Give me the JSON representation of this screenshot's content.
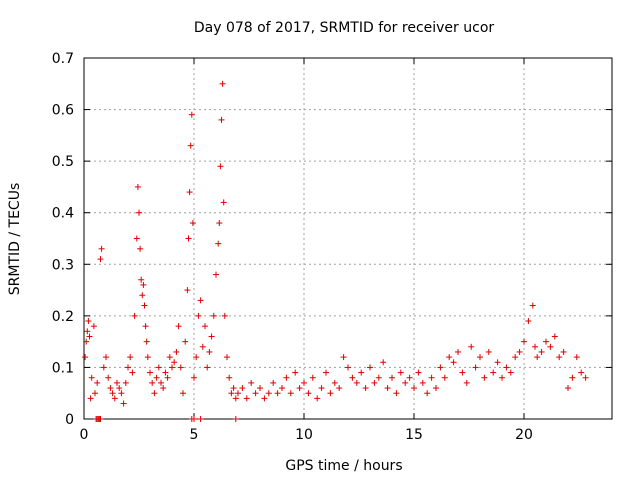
{
  "chart_data": {
    "type": "scatter",
    "title": "Day 078 of 2017, SRMTID for receiver ucor",
    "xlabel": "GPS time / hours",
    "ylabel": "SRMTID / TECUs",
    "xlim": [
      0,
      24
    ],
    "ylim": [
      0,
      0.7
    ],
    "xticks": [
      0,
      5,
      10,
      15,
      20
    ],
    "xtick_labels": [
      "0",
      "5",
      "10",
      "15",
      "20"
    ],
    "yticks": [
      0,
      0.1,
      0.2,
      0.3,
      0.4,
      0.5,
      0.6,
      0.7
    ],
    "ytick_labels": [
      "0",
      "0.1",
      "0.2",
      "0.3",
      "0.4",
      "0.5",
      "0.6",
      "0.7"
    ],
    "grid": true,
    "marker": "+",
    "color": "#e00000",
    "series": [
      {
        "name": "SRMTID",
        "x": [
          0.05,
          0.1,
          0.15,
          0.2,
          0.25,
          0.3,
          0.35,
          0.45,
          0.5,
          0.6,
          0.75,
          0.8,
          0.9,
          1.0,
          1.1,
          1.2,
          1.3,
          1.4,
          1.5,
          1.6,
          1.7,
          1.8,
          1.9,
          2.0,
          2.1,
          2.2,
          2.3,
          2.4,
          2.45,
          2.5,
          2.55,
          2.6,
          2.65,
          2.7,
          2.75,
          2.8,
          2.85,
          2.9,
          3.0,
          3.1,
          3.2,
          3.3,
          3.4,
          3.5,
          3.6,
          3.7,
          3.8,
          3.9,
          4.0,
          4.1,
          4.2,
          4.3,
          4.4,
          4.5,
          4.6,
          4.7,
          4.75,
          4.8,
          4.85,
          4.9,
          4.95,
          5.0,
          5.1,
          5.2,
          5.3,
          5.4,
          5.5,
          5.6,
          5.7,
          5.8,
          5.9,
          6.0,
          6.1,
          6.15,
          6.2,
          6.25,
          6.3,
          6.35,
          6.4,
          6.5,
          6.6,
          6.7,
          6.8,
          6.9,
          7.0,
          7.2,
          7.4,
          7.6,
          7.8,
          8.0,
          8.2,
          8.4,
          8.6,
          8.8,
          9.0,
          9.2,
          9.4,
          9.6,
          9.8,
          10.0,
          10.2,
          10.4,
          10.6,
          10.8,
          11.0,
          11.2,
          11.4,
          11.6,
          11.8,
          12.0,
          12.2,
          12.4,
          12.6,
          12.8,
          13.0,
          13.2,
          13.4,
          13.6,
          13.8,
          14.0,
          14.2,
          14.4,
          14.6,
          14.8,
          15.0,
          15.2,
          15.4,
          15.6,
          15.8,
          16.0,
          16.2,
          16.4,
          16.6,
          16.8,
          17.0,
          17.2,
          17.4,
          17.6,
          17.8,
          18.0,
          18.2,
          18.4,
          18.6,
          18.8,
          19.0,
          19.2,
          19.4,
          19.6,
          19.8,
          20.0,
          20.2,
          20.4,
          20.5,
          20.6,
          20.8,
          21.0,
          21.2,
          21.4,
          21.6,
          21.8,
          22.0,
          22.2,
          22.4,
          22.6,
          22.8,
          0.55,
          0.6,
          0.65,
          0.7,
          0.75,
          4.9,
          5.0,
          5.3,
          6.9
        ],
        "y": [
          0.12,
          0.15,
          0.17,
          0.19,
          0.16,
          0.04,
          0.08,
          0.18,
          0.05,
          0.07,
          0.31,
          0.33,
          0.1,
          0.12,
          0.08,
          0.06,
          0.05,
          0.04,
          0.07,
          0.06,
          0.05,
          0.03,
          0.07,
          0.1,
          0.12,
          0.09,
          0.2,
          0.35,
          0.45,
          0.4,
          0.33,
          0.27,
          0.24,
          0.26,
          0.22,
          0.18,
          0.15,
          0.12,
          0.09,
          0.07,
          0.05,
          0.08,
          0.1,
          0.07,
          0.06,
          0.09,
          0.08,
          0.12,
          0.1,
          0.11,
          0.13,
          0.18,
          0.1,
          0.05,
          0.15,
          0.25,
          0.35,
          0.44,
          0.53,
          0.59,
          0.38,
          0.08,
          0.12,
          0.2,
          0.23,
          0.14,
          0.18,
          0.1,
          0.13,
          0.16,
          0.2,
          0.28,
          0.34,
          0.38,
          0.49,
          0.58,
          0.65,
          0.42,
          0.2,
          0.12,
          0.08,
          0.05,
          0.06,
          0.04,
          0.05,
          0.06,
          0.04,
          0.07,
          0.05,
          0.06,
          0.04,
          0.05,
          0.07,
          0.05,
          0.06,
          0.08,
          0.05,
          0.09,
          0.06,
          0.07,
          0.05,
          0.08,
          0.04,
          0.06,
          0.09,
          0.05,
          0.07,
          0.06,
          0.12,
          0.1,
          0.08,
          0.07,
          0.09,
          0.06,
          0.1,
          0.07,
          0.08,
          0.11,
          0.06,
          0.08,
          0.05,
          0.09,
          0.07,
          0.08,
          0.06,
          0.09,
          0.07,
          0.05,
          0.08,
          0.06,
          0.1,
          0.08,
          0.12,
          0.11,
          0.13,
          0.09,
          0.07,
          0.14,
          0.1,
          0.12,
          0.08,
          0.13,
          0.09,
          0.11,
          0.08,
          0.1,
          0.09,
          0.12,
          0.13,
          0.15,
          0.19,
          0.22,
          0.14,
          0.12,
          0.13,
          0.15,
          0.14,
          0.16,
          0.12,
          0.13,
          0.06,
          0.08,
          0.12,
          0.09,
          0.08,
          0.0,
          0.0,
          0.0,
          0.0,
          0.0,
          0.0,
          0.0,
          0.0,
          0.0
        ]
      }
    ]
  }
}
